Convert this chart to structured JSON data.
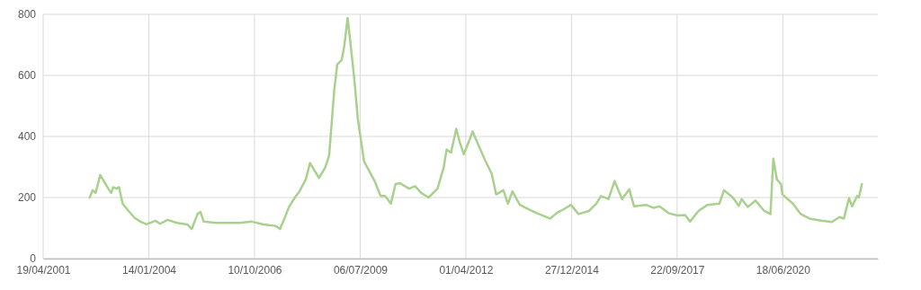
{
  "chart_data": {
    "type": "line",
    "x": [
      "2002-07-03",
      "2002-08-01",
      "2002-08-28",
      "2002-10-11",
      "2002-11-22",
      "2003-01-05",
      "2003-01-23",
      "2003-02-11",
      "2003-03-14",
      "2003-04-07",
      "2003-05-11",
      "2003-07-06",
      "2003-09-03",
      "2003-10-27",
      "2003-12-23",
      "2004-03-17",
      "2004-04-28",
      "2004-07-10",
      "2004-10-05",
      "2005-01-12",
      "2005-02-23",
      "2005-04-19",
      "2005-05-17",
      "2005-06-16",
      "2005-10-08",
      "2006-05-21",
      "2006-09-13",
      "2007-01-05",
      "2007-04-26",
      "2007-06-09",
      "2007-07-20",
      "2007-09-04",
      "2007-10-27",
      "2007-12-10",
      "2008-02-07",
      "2008-03-18",
      "2008-05-01",
      "2008-06-12",
      "2008-08-09",
      "2008-09-15",
      "2008-10-05",
      "2008-11-03",
      "2008-12-01",
      "2009-01-12",
      "2009-02-05",
      "2009-03-09",
      "2009-04-07",
      "2009-05-10",
      "2009-06-15",
      "2009-08-12",
      "2009-11-20",
      "2010-01-15",
      "2010-02-27",
      "2010-04-23",
      "2010-06-06",
      "2010-07-17",
      "2010-10-12",
      "2010-12-08",
      "2011-02-04",
      "2011-04-14",
      "2011-07-08",
      "2011-09-04",
      "2011-10-02",
      "2011-11-13",
      "2012-01-01",
      "2012-02-08",
      "2012-03-13",
      "2012-04-17",
      "2012-06-05",
      "2012-07-24",
      "2012-10-06",
      "2012-12-02",
      "2013-01-13",
      "2013-03-22",
      "2013-05-05",
      "2013-06-16",
      "2013-08-25",
      "2013-11-20",
      "2014-02-01",
      "2014-06-07",
      "2014-08-16",
      "2014-10-12",
      "2014-12-21",
      "2015-03-03",
      "2015-06-10",
      "2015-08-19",
      "2015-10-02",
      "2015-12-12",
      "2016-02-08",
      "2016-04-18",
      "2016-06-26",
      "2016-08-10",
      "2016-12-02",
      "2017-02-12",
      "2017-04-07",
      "2017-07-02",
      "2017-09-24",
      "2017-12-06",
      "2018-01-22",
      "2018-04-11",
      "2018-07-06",
      "2018-10-26",
      "2018-12-09",
      "2019-03-03",
      "2019-04-28",
      "2019-05-26",
      "2019-07-22",
      "2019-10-03",
      "2019-12-25",
      "2020-02-22",
      "2020-03-20",
      "2020-04-23",
      "2020-06-01",
      "2020-06-14",
      "2020-09-21",
      "2020-12-03",
      "2021-02-25",
      "2021-06-17",
      "2021-09-25",
      "2021-12-06",
      "2022-01-17",
      "2022-03-06",
      "2022-04-04",
      "2022-05-23",
      "2022-06-08",
      "2022-07-06"
    ],
    "series": [
      {
        "color": "#a9d18e",
        "values": [
          200,
          224,
          215,
          274,
          249,
          224,
          215,
          234,
          229,
          234,
          180,
          156,
          133,
          121,
          112,
          124,
          114,
          127,
          117,
          112,
          97,
          146,
          153,
          121,
          117,
          117,
          121,
          112,
          107,
          97,
          131,
          171,
          200,
          220,
          259,
          313,
          288,
          264,
          298,
          337,
          425,
          553,
          636,
          651,
          695,
          788,
          700,
          592,
          455,
          318,
          254,
          205,
          205,
          180,
          244,
          247,
          229,
          237,
          215,
          200,
          229,
          298,
          357,
          347,
          425,
          376,
          342,
          372,
          416,
          376,
          318,
          278,
          210,
          224,
          180,
          220,
          176,
          161,
          149,
          131,
          151,
          161,
          176,
          146,
          156,
          180,
          205,
          195,
          254,
          195,
          227,
          171,
          176,
          166,
          171,
          149,
          141,
          143,
          121,
          156,
          176,
          180,
          224,
          200,
          173,
          195,
          169,
          190,
          156,
          146,
          327,
          259,
          244,
          210,
          180,
          146,
          131,
          124,
          120,
          136,
          131,
          198,
          171,
          205,
          200,
          244
        ]
      }
    ],
    "xlim": [
      "2001-04-19",
      "2022-12-04"
    ],
    "xticks": [
      {
        "value": "2001-04-19",
        "label": "19/04/2001"
      },
      {
        "value": "2004-01-14",
        "label": "14/01/2004"
      },
      {
        "value": "2006-10-10",
        "label": "10/10/2006"
      },
      {
        "value": "2009-07-06",
        "label": "06/07/2009"
      },
      {
        "value": "2012-04-01",
        "label": "01/04/2012"
      },
      {
        "value": "2014-12-27",
        "label": "27/12/2014"
      },
      {
        "value": "2017-09-22",
        "label": "22/09/2017"
      },
      {
        "value": "2020-06-18",
        "label": "18/06/2020"
      }
    ],
    "ylim": [
      0,
      800
    ],
    "yticks": [
      0,
      200,
      400,
      600,
      800
    ],
    "grid": true,
    "marker": "none",
    "line_style": "solid"
  }
}
